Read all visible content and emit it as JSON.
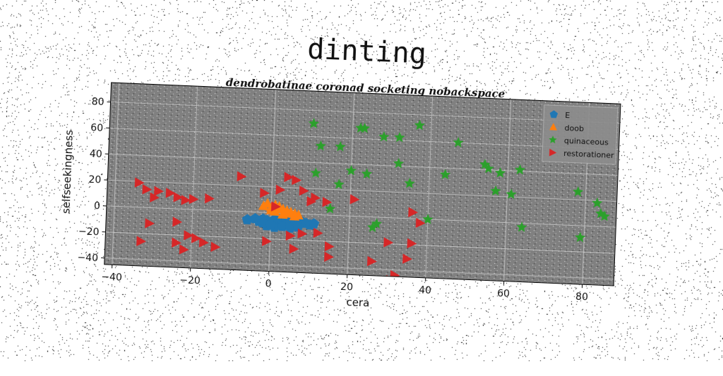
{
  "title": "dinting",
  "chart_data": {
    "type": "scatter",
    "title": "dendrobatinae coronad socketing nobackspace",
    "xlabel": "cera",
    "ylabel": "selfseekingness",
    "xlim": [
      -42,
      88
    ],
    "ylim": [
      -45,
      95
    ],
    "xticks": [
      -40,
      -20,
      0,
      20,
      40,
      60,
      80
    ],
    "yticks": [
      -40,
      -20,
      0,
      20,
      40,
      60,
      80
    ],
    "grid": true,
    "legend_position": "top-right",
    "background": "#808080",
    "series": [
      {
        "name": "E",
        "marker": "pentagon",
        "color": "#1f77b4",
        "points": [
          [
            -6,
            -6
          ],
          [
            -4,
            -5
          ],
          [
            -3,
            -7
          ],
          [
            -2,
            -5
          ],
          [
            -1,
            -6
          ],
          [
            0,
            -7
          ],
          [
            1,
            -5
          ],
          [
            2,
            -7
          ],
          [
            3,
            -8
          ],
          [
            4,
            -6
          ],
          [
            5,
            -7
          ],
          [
            6,
            -9
          ],
          [
            7,
            -8
          ],
          [
            8,
            -6
          ],
          [
            9,
            -7
          ],
          [
            10,
            -8
          ],
          [
            11,
            -7
          ],
          [
            -1,
            -10
          ],
          [
            1,
            -11
          ],
          [
            3,
            -10
          ],
          [
            5,
            -11
          ],
          [
            -2,
            -8
          ],
          [
            7,
            -10
          ],
          [
            0,
            -9
          ]
        ]
      },
      {
        "name": "doob",
        "marker": "triangle-up",
        "color": "#ff7f0e",
        "points": [
          [
            -2,
            5
          ],
          [
            -1,
            7
          ],
          [
            0,
            4
          ],
          [
            1,
            6
          ],
          [
            2,
            5
          ],
          [
            3,
            3
          ],
          [
            4,
            2
          ],
          [
            5,
            1
          ],
          [
            6,
            0
          ],
          [
            7,
            -1
          ],
          [
            0,
            2
          ],
          [
            2,
            3
          ],
          [
            4,
            0
          ],
          [
            6,
            -2
          ],
          [
            3,
            -1
          ],
          [
            1,
            1
          ]
        ]
      },
      {
        "name": "quinaceous",
        "marker": "star",
        "color": "#2ca02c",
        "points": [
          [
            10,
            70
          ],
          [
            12,
            53
          ],
          [
            17,
            53
          ],
          [
            22,
            68
          ],
          [
            23,
            68
          ],
          [
            28,
            62
          ],
          [
            32,
            62
          ],
          [
            37,
            72
          ],
          [
            47,
            60
          ],
          [
            11,
            32
          ],
          [
            17,
            24
          ],
          [
            20,
            35
          ],
          [
            24,
            33
          ],
          [
            32,
            42
          ],
          [
            35,
            27
          ],
          [
            44,
            35
          ],
          [
            54,
            44
          ],
          [
            55,
            41
          ],
          [
            58,
            38
          ],
          [
            63,
            41
          ],
          [
            57,
            24
          ],
          [
            61,
            22
          ],
          [
            64,
            -3
          ],
          [
            78,
            26
          ],
          [
            83,
            18
          ],
          [
            84,
            10
          ],
          [
            85,
            8
          ],
          [
            79,
            -9
          ],
          [
            40,
            0
          ],
          [
            27,
            -5
          ],
          [
            26,
            -8
          ],
          [
            15,
            5
          ]
        ]
      },
      {
        "name": "restorationer",
        "marker": "triangle-right",
        "color": "#d62728",
        "points": [
          [
            -34,
            19
          ],
          [
            -32,
            14
          ],
          [
            -29,
            13
          ],
          [
            -26,
            12
          ],
          [
            -30,
            8
          ],
          [
            -24,
            9
          ],
          [
            -22,
            7
          ],
          [
            -20,
            8
          ],
          [
            -16,
            9
          ],
          [
            -8,
            27
          ],
          [
            -2,
            15
          ],
          [
            2,
            18
          ],
          [
            1,
            5
          ],
          [
            4,
            28
          ],
          [
            6,
            26
          ],
          [
            8,
            18
          ],
          [
            11,
            13
          ],
          [
            10,
            10
          ],
          [
            14,
            10
          ],
          [
            21,
            13
          ],
          [
            -31,
            -12
          ],
          [
            -24,
            -10
          ],
          [
            -21,
            -20
          ],
          [
            -19,
            -22
          ],
          [
            -24,
            -26
          ],
          [
            -22,
            -31
          ],
          [
            -17,
            -25
          ],
          [
            -14,
            -28
          ],
          [
            -33,
            -26
          ],
          [
            -1,
            -22
          ],
          [
            5,
            -17
          ],
          [
            8,
            -15
          ],
          [
            12,
            -14
          ],
          [
            6,
            -27
          ],
          [
            15,
            -24
          ],
          [
            15,
            -32
          ],
          [
            26,
            -34
          ],
          [
            30,
            -19
          ],
          [
            32,
            -44
          ],
          [
            35,
            -31
          ],
          [
            36,
            -19
          ],
          [
            31,
            -48
          ],
          [
            36,
            5
          ],
          [
            38,
            -3
          ]
        ]
      }
    ]
  }
}
